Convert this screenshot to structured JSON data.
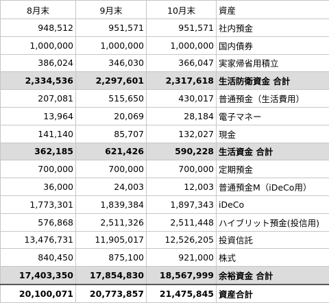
{
  "table": {
    "header": [
      "8月末",
      "9月末",
      "10月末",
      "資産"
    ],
    "rows": [
      [
        "948,512",
        "951,571",
        "951,571",
        "社内預金"
      ],
      [
        "1,000,000",
        "1,000,000",
        "1,000,000",
        "国内債券"
      ],
      [
        "386,024",
        "346,030",
        "366,047",
        "実家帰省用積立"
      ],
      [
        "2,334,536",
        "2,297,601",
        "2,317,618",
        "生活防衛資金 合計"
      ],
      [
        "207,081",
        "515,650",
        "430,017",
        "普通預金（生活費用）"
      ],
      [
        "13,964",
        "20,069",
        "28,184",
        "電子マネー"
      ],
      [
        "141,140",
        "85,707",
        "132,027",
        "現金"
      ],
      [
        "362,185",
        "621,426",
        "590,228",
        "生活資金 合計"
      ],
      [
        "700,000",
        "700,000",
        "700,000",
        "定期預金"
      ],
      [
        "36,000",
        "24,003",
        "12,003",
        "普通預金M（iDeCo用）"
      ],
      [
        "1,773,301",
        "1,839,384",
        "1,897,343",
        "iDeCo"
      ],
      [
        "576,868",
        "2,511,326",
        "2,511,448",
        "ハイブリット預金(投信用)"
      ],
      [
        "13,476,731",
        "11,905,017",
        "12,526,205",
        "投資信託"
      ],
      [
        "840,450",
        "875,100",
        "921,000",
        "株式"
      ],
      [
        "17,403,350",
        "17,854,830",
        "18,567,999",
        "余裕資金 合計"
      ],
      [
        "20,100,071",
        "20,773,857",
        "21,475,845",
        "資産合計"
      ]
    ]
  }
}
